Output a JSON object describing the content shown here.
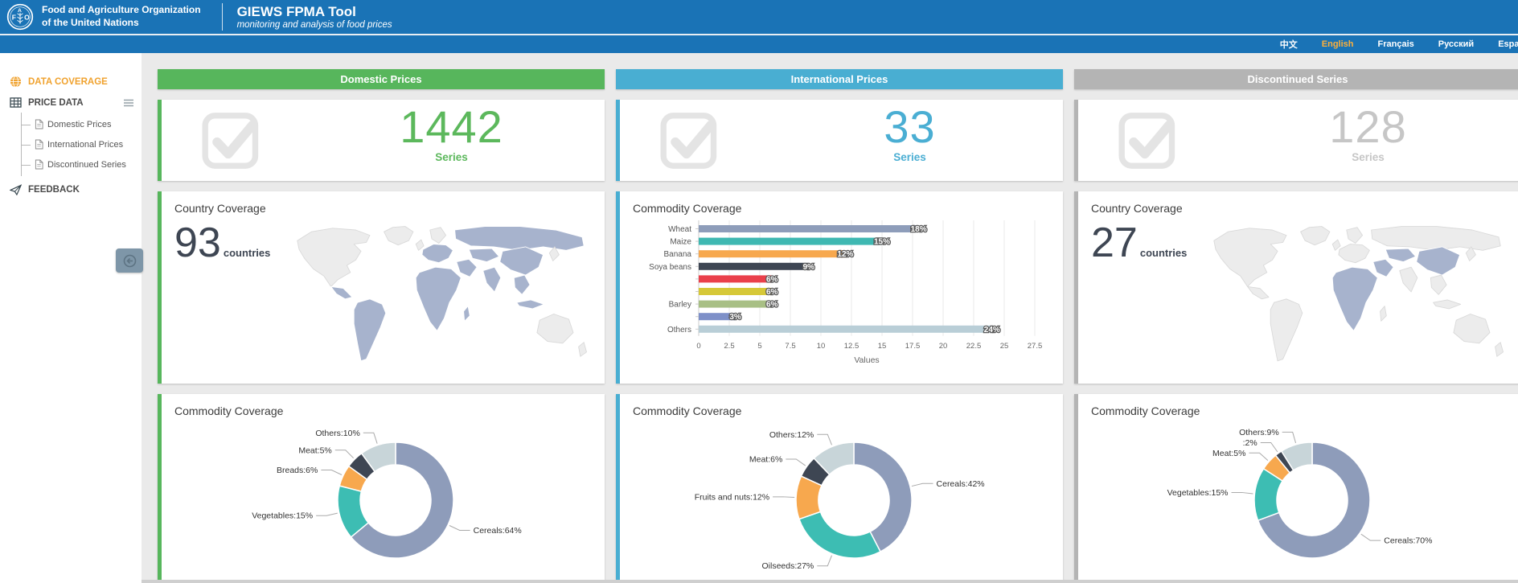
{
  "header": {
    "org_line1": "Food and Agriculture Organization",
    "org_line2": "of the United Nations",
    "app_title": "GIEWS FPMA Tool",
    "app_subtitle": "monitoring and analysis of food prices",
    "bar_color": "#1a73b6"
  },
  "language_bar": {
    "active_color": "#ffb03a",
    "items": [
      {
        "label": "中文",
        "active": false
      },
      {
        "label": "English",
        "active": true
      },
      {
        "label": "Français",
        "active": false
      },
      {
        "label": "Русский",
        "active": false
      },
      {
        "label": "Español",
        "active": false
      }
    ]
  },
  "sidebar": {
    "data_coverage_label": "DATA COVERAGE",
    "price_data_label": "PRICE DATA",
    "children": [
      "Domestic Prices",
      "International Prices",
      "Discontinued Series"
    ],
    "feedback_label": "FEEDBACK"
  },
  "icons": {
    "globe-icon": "orange globe",
    "grid-icon": "data table",
    "document-icon": "document page",
    "paper-plane-icon": "send feedback",
    "hamburger-icon": "≡",
    "collapse-arrow-icon": "circled left arrow",
    "check-square-icon": "large gray checkbox with check mark"
  },
  "map_colors": {
    "covered": "#a7b3cd",
    "uncovered": "#ececec",
    "border": "#ffffff",
    "uncovered_border": "#d9d9d9"
  },
  "columns": [
    {
      "key": "domestic",
      "header": "Domestic Prices",
      "theme_color": "#57b65c",
      "number_color": "#5cb85c",
      "series_count": "1442",
      "series_label": "Series",
      "coverage": {
        "type": "map",
        "title": "Country Coverage",
        "count": "93",
        "unit": "countries",
        "covered_regions": [
          "central-america",
          "south-america",
          "europe",
          "africa",
          "madagascar",
          "russia",
          "central-asia",
          "middle-east",
          "india",
          "china",
          "southeast-asia",
          "indonesia"
        ]
      },
      "donut": {
        "title": "Commodity Coverage",
        "chart": 1
      }
    },
    {
      "key": "international",
      "header": "International Prices",
      "theme_color": "#49aed2",
      "number_color": "#4aaed3",
      "series_count": "33",
      "series_label": "Series",
      "coverage": {
        "type": "bar",
        "title": "Commodity Coverage",
        "chart": 0
      },
      "donut": {
        "title": "Commodity Coverage",
        "chart": 2
      }
    },
    {
      "key": "discontinued",
      "header": "Discontinued Series",
      "theme_color": "#b4b4b4",
      "number_color": "#c6c6c6",
      "series_count": "128",
      "series_label": "Series",
      "coverage": {
        "type": "map",
        "title": "Country Coverage",
        "count": "27",
        "unit": "countries",
        "covered_regions": [
          "china",
          "central-asia",
          "middle-east",
          "africa"
        ]
      },
      "donut": {
        "title": "Commodity Coverage",
        "chart": 3
      }
    }
  ],
  "chart_data": [
    {
      "id": "international-commodity-bar",
      "type": "bar",
      "orientation": "horizontal",
      "title": "Commodity Coverage",
      "categories": [
        "Wheat",
        "Maize",
        "Banana",
        "Soya beans",
        "",
        "",
        "Barley",
        "",
        "Others"
      ],
      "values": [
        18,
        15,
        12,
        9,
        6,
        6,
        6,
        3,
        24
      ],
      "value_labels": [
        "18%",
        "15%",
        "12%",
        "9%",
        "6%",
        "6%",
        "6%",
        "3%",
        "24%"
      ],
      "colors": [
        "#8e9dba",
        "#3fb8b2",
        "#f7a84e",
        "#3e4653",
        "#ea404b",
        "#d6c838",
        "#a8bf85",
        "#7e90c8",
        "#b9ced7"
      ],
      "xlabel": "Values",
      "xlim": [
        0,
        27.5
      ],
      "xticks": [
        0,
        2.5,
        5,
        7.5,
        10,
        12.5,
        15,
        17.5,
        20,
        22.5,
        25,
        27.5
      ],
      "grid": true,
      "legend": false
    },
    {
      "id": "domestic-commodity-donut",
      "type": "pie",
      "donut": true,
      "title": "Commodity Coverage",
      "labels": [
        "Cereals:64%",
        "Vegetables:15%",
        "Breads:6%",
        "Meat:5%",
        "Others:10%"
      ],
      "names": [
        "Cereals",
        "Vegetables",
        "Breads",
        "Meat",
        "Others"
      ],
      "values": [
        64,
        15,
        6,
        5,
        10
      ],
      "colors": [
        "#8e9cba",
        "#3dbdb3",
        "#f7a84e",
        "#3e4653",
        "#c8d5d9"
      ]
    },
    {
      "id": "international-commodity-donut",
      "type": "pie",
      "donut": true,
      "title": "Commodity Coverage",
      "labels": [
        "Cereals:42%",
        "Oilseeds:27%",
        "Fruits and nuts:12%",
        "Meat:6%",
        "Others:12%"
      ],
      "names": [
        "Cereals",
        "Oilseeds",
        "Fruits and nuts",
        "Meat",
        "Others"
      ],
      "values": [
        42,
        27,
        12,
        6,
        12
      ],
      "colors": [
        "#8e9cba",
        "#3dbdb3",
        "#f7a84e",
        "#3e4653",
        "#c8d5d9"
      ]
    },
    {
      "id": "discontinued-commodity-donut",
      "type": "pie",
      "donut": true,
      "title": "Commodity Coverage",
      "labels": [
        "Cereals:70%",
        "Vegetables:15%",
        "Meat:5%",
        ":2%",
        "Others:9%"
      ],
      "names": [
        "Cereals",
        "Vegetables",
        "Meat",
        "",
        "Others"
      ],
      "values": [
        70,
        15,
        5,
        2,
        9
      ],
      "colors": [
        "#8e9cba",
        "#3dbdb3",
        "#f7a84e",
        "#3e4653",
        "#c8d5d9"
      ]
    }
  ]
}
